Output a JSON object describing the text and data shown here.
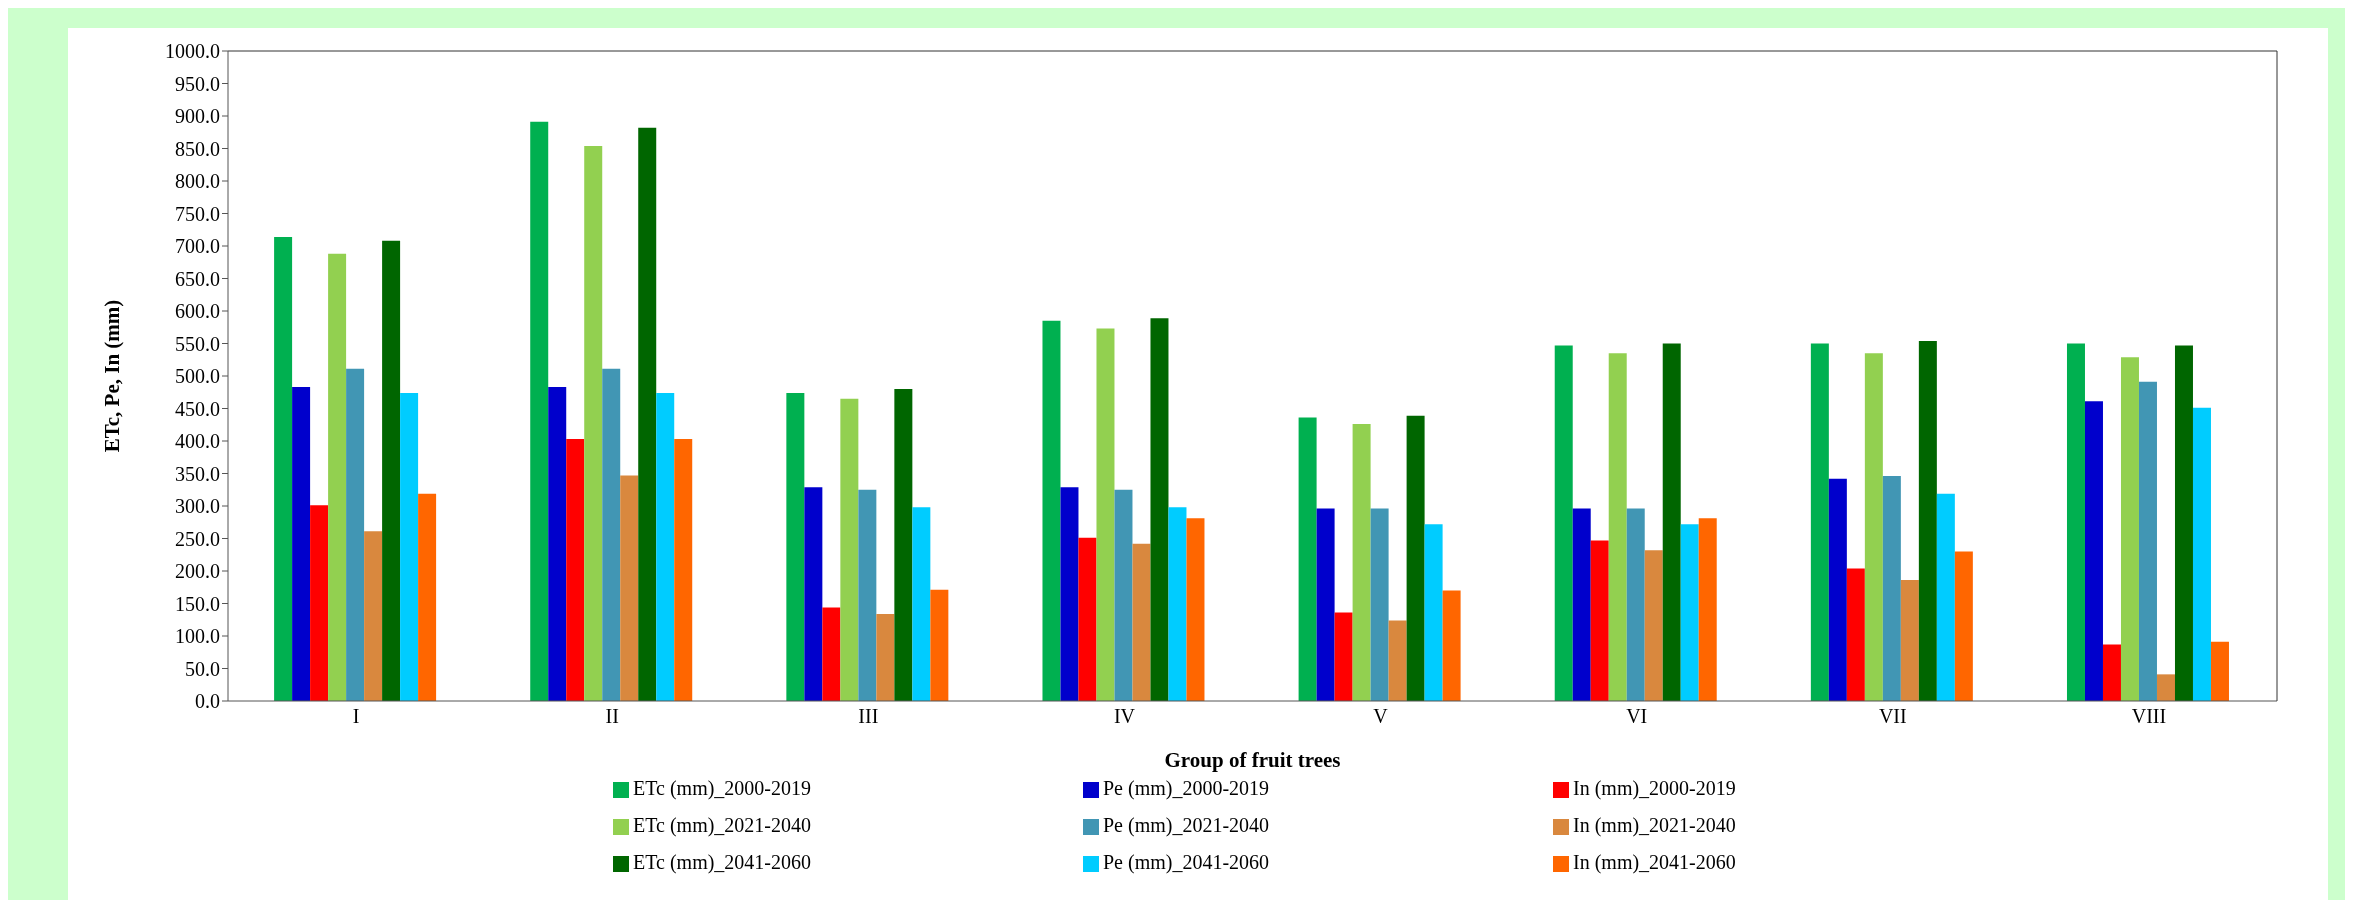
{
  "chart_data": {
    "type": "bar",
    "xlabel": "Group of fruit trees",
    "ylabel": "ETc, Pe, In (mm)",
    "categories": [
      "I",
      "II",
      "III",
      "IV",
      "V",
      "VI",
      "VII",
      "VIII"
    ],
    "series": [
      {
        "name": "ETc (mm)_2000-2019",
        "color": "#00b050",
        "values": [
          714,
          891,
          474,
          585,
          436,
          547,
          550,
          550
        ]
      },
      {
        "name": "Pe (mm)_2000-2019",
        "color": "#0000cc",
        "values": [
          483,
          483,
          329,
          329,
          296,
          296,
          342,
          461
        ]
      },
      {
        "name": "In (mm)_2000-2019",
        "color": "#ff0000",
        "values": [
          301,
          403,
          144,
          251,
          136,
          247,
          204,
          87
        ]
      },
      {
        "name": "ETc (mm)_2021-2040",
        "color": "#92d050",
        "values": [
          688,
          854,
          465,
          573,
          426,
          535,
          535,
          529
        ]
      },
      {
        "name": "Pe (mm)_2021-2040",
        "color": "#4196b4",
        "values": [
          511,
          511,
          325,
          325,
          296,
          296,
          346,
          491
        ]
      },
      {
        "name": "In (mm)_2021-2040",
        "color": "#d9883e",
        "values": [
          261,
          347,
          134,
          242,
          124,
          232,
          186,
          41
        ]
      },
      {
        "name": "ETc (mm)_2041-2060",
        "color": "#006600",
        "values": [
          708,
          882,
          480,
          589,
          439,
          550,
          554,
          547
        ]
      },
      {
        "name": "Pe (mm)_2041-2060",
        "color": "#00ccff",
        "values": [
          474,
          474,
          298,
          298,
          272,
          272,
          319,
          451
        ]
      },
      {
        "name": "In (mm)_2041-2060",
        "color": "#ff6600",
        "values": [
          319,
          403,
          171,
          281,
          170,
          281,
          230,
          91
        ]
      }
    ],
    "ylim": [
      0,
      1000
    ],
    "yticks": [
      {
        "value": 0,
        "label": "0.0"
      },
      {
        "value": 50,
        "label": "50.0"
      },
      {
        "value": 100,
        "label": "100.0"
      },
      {
        "value": 150,
        "label": "150.0"
      },
      {
        "value": 200,
        "label": "200.0"
      },
      {
        "value": 250,
        "label": "250.0"
      },
      {
        "value": 300,
        "label": "300.0"
      },
      {
        "value": 350,
        "label": "350.0"
      },
      {
        "value": 400,
        "label": "400.0"
      },
      {
        "value": 450,
        "label": "450.0"
      },
      {
        "value": 500,
        "label": "500.0"
      },
      {
        "value": 550,
        "label": "550.0"
      },
      {
        "value": 600,
        "label": "600.0"
      },
      {
        "value": 650,
        "label": "650.0"
      },
      {
        "value": 700,
        "label": "700.0"
      },
      {
        "value": 750,
        "label": "750.0"
      },
      {
        "value": 800,
        "label": "800.0"
      },
      {
        "value": 850,
        "label": "850.0"
      },
      {
        "value": 900,
        "label": "900.0"
      },
      {
        "value": 950,
        "label": "950.0"
      },
      {
        "value": 1000,
        "label": "1000.0"
      }
    ],
    "grid": false,
    "legend": "bottom"
  }
}
